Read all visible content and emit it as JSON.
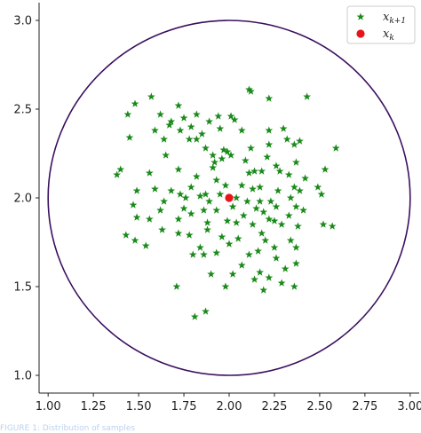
{
  "chart_data": {
    "type": "scatter",
    "title": "",
    "xlabel": "",
    "ylabel": "",
    "xlim": [
      0.95,
      3.05
    ],
    "ylim": [
      0.9,
      3.1
    ],
    "xticks": [
      "1.00",
      "1.25",
      "1.50",
      "1.75",
      "2.00",
      "2.25",
      "2.50",
      "2.75",
      "3.00"
    ],
    "yticks": [
      "1.0",
      "1.5",
      "2.0",
      "2.5",
      "3.0"
    ],
    "grid": false,
    "legend_position": "top-right",
    "circle": {
      "center": [
        2.0,
        2.0
      ],
      "radius": 1.0,
      "color": "#3b0f5e"
    },
    "series": [
      {
        "name": "x_{k+1}",
        "label_main": "x",
        "label_sub": "k+1",
        "marker": "star",
        "color": "#1a8a1a",
        "points": [
          [
            1.48,
            2.53
          ],
          [
            1.57,
            2.57
          ],
          [
            1.44,
            2.47
          ],
          [
            1.67,
            2.41
          ],
          [
            1.62,
            2.47
          ],
          [
            1.75,
            2.45
          ],
          [
            1.82,
            2.47
          ],
          [
            1.89,
            2.43
          ],
          [
            1.94,
            2.46
          ],
          [
            2.01,
            2.46
          ],
          [
            2.03,
            2.44
          ],
          [
            2.12,
            2.6
          ],
          [
            2.22,
            2.56
          ],
          [
            2.43,
            2.57
          ],
          [
            2.11,
            2.61
          ],
          [
            1.72,
            2.52
          ],
          [
            1.68,
            2.43
          ],
          [
            1.73,
            2.38
          ],
          [
            1.79,
            2.4
          ],
          [
            1.85,
            2.36
          ],
          [
            1.45,
            2.34
          ],
          [
            1.59,
            2.38
          ],
          [
            1.64,
            2.33
          ],
          [
            1.78,
            2.33
          ],
          [
            1.82,
            2.33
          ],
          [
            1.95,
            2.39
          ],
          [
            2.07,
            2.38
          ],
          [
            2.22,
            2.38
          ],
          [
            2.3,
            2.39
          ],
          [
            2.32,
            2.33
          ],
          [
            1.87,
            2.28
          ],
          [
            1.91,
            2.24
          ],
          [
            1.97,
            2.27
          ],
          [
            1.99,
            2.26
          ],
          [
            2.12,
            2.28
          ],
          [
            2.22,
            2.3
          ],
          [
            2.36,
            2.3
          ],
          [
            2.39,
            2.32
          ],
          [
            2.59,
            2.28
          ],
          [
            1.65,
            2.24
          ],
          [
            1.92,
            2.2
          ],
          [
            2.01,
            2.24
          ],
          [
            2.09,
            2.21
          ],
          [
            2.11,
            2.14
          ],
          [
            2.21,
            2.23
          ],
          [
            2.26,
            2.18
          ],
          [
            2.37,
            2.2
          ],
          [
            1.4,
            2.16
          ],
          [
            1.38,
            2.13
          ],
          [
            1.56,
            2.14
          ],
          [
            1.72,
            2.16
          ],
          [
            1.82,
            2.12
          ],
          [
            1.91,
            2.17
          ],
          [
            1.96,
            2.22
          ],
          [
            2.14,
            2.15
          ],
          [
            2.18,
            2.15
          ],
          [
            2.28,
            2.15
          ],
          [
            2.33,
            2.13
          ],
          [
            2.42,
            2.11
          ],
          [
            2.53,
            2.16
          ],
          [
            1.68,
            2.04
          ],
          [
            1.79,
            2.06
          ],
          [
            1.87,
            2.02
          ],
          [
            1.93,
            2.1
          ],
          [
            1.98,
            2.07
          ],
          [
            2.07,
            2.07
          ],
          [
            2.13,
            2.05
          ],
          [
            2.17,
            2.06
          ],
          [
            2.27,
            2.04
          ],
          [
            2.36,
            2.06
          ],
          [
            2.39,
            2.04
          ],
          [
            2.49,
            2.06
          ],
          [
            1.49,
            2.04
          ],
          [
            1.59,
            2.05
          ],
          [
            1.64,
            1.98
          ],
          [
            1.73,
            2.02
          ],
          [
            1.76,
            2.0
          ],
          [
            1.84,
            2.01
          ],
          [
            1.89,
            1.98
          ],
          [
            1.95,
            2.02
          ],
          [
            2.04,
            2.0
          ],
          [
            2.1,
            1.98
          ],
          [
            2.17,
            1.98
          ],
          [
            2.23,
            1.98
          ],
          [
            2.34,
            2.0
          ],
          [
            2.37,
            1.95
          ],
          [
            2.51,
            2.02
          ],
          [
            1.47,
            1.96
          ],
          [
            1.62,
            1.93
          ],
          [
            1.75,
            1.94
          ],
          [
            1.86,
            1.93
          ],
          [
            1.93,
            1.93
          ],
          [
            2.02,
            1.95
          ],
          [
            2.08,
            1.9
          ],
          [
            2.15,
            1.94
          ],
          [
            2.19,
            1.92
          ],
          [
            2.26,
            1.95
          ],
          [
            2.33,
            1.9
          ],
          [
            2.41,
            1.93
          ],
          [
            2.52,
            1.85
          ],
          [
            1.49,
            1.89
          ],
          [
            1.56,
            1.88
          ],
          [
            1.72,
            1.88
          ],
          [
            1.79,
            1.91
          ],
          [
            1.88,
            1.86
          ],
          [
            1.99,
            1.87
          ],
          [
            2.04,
            1.86
          ],
          [
            2.13,
            1.85
          ],
          [
            2.22,
            1.88
          ],
          [
            2.25,
            1.87
          ],
          [
            2.29,
            1.85
          ],
          [
            2.38,
            1.84
          ],
          [
            2.57,
            1.84
          ],
          [
            1.43,
            1.79
          ],
          [
            1.48,
            1.76
          ],
          [
            1.54,
            1.73
          ],
          [
            1.63,
            1.82
          ],
          [
            1.72,
            1.8
          ],
          [
            1.78,
            1.79
          ],
          [
            1.88,
            1.82
          ],
          [
            1.96,
            1.78
          ],
          [
            2.05,
            1.77
          ],
          [
            2.18,
            1.8
          ],
          [
            2.2,
            1.76
          ],
          [
            2.25,
            1.72
          ],
          [
            2.34,
            1.76
          ],
          [
            2.37,
            1.72
          ],
          [
            1.84,
            1.72
          ],
          [
            1.86,
            1.68
          ],
          [
            1.93,
            1.69
          ],
          [
            2.0,
            1.74
          ],
          [
            2.11,
            1.68
          ],
          [
            2.16,
            1.7
          ],
          [
            2.26,
            1.66
          ],
          [
            2.31,
            1.6
          ],
          [
            2.37,
            1.63
          ],
          [
            1.8,
            1.68
          ],
          [
            1.9,
            1.57
          ],
          [
            2.02,
            1.57
          ],
          [
            2.07,
            1.62
          ],
          [
            2.14,
            1.54
          ],
          [
            2.17,
            1.58
          ],
          [
            2.22,
            1.55
          ],
          [
            2.29,
            1.52
          ],
          [
            2.19,
            1.48
          ],
          [
            2.36,
            1.5
          ],
          [
            1.98,
            1.5
          ],
          [
            1.71,
            1.5
          ],
          [
            1.87,
            1.36
          ],
          [
            1.81,
            1.33
          ]
        ]
      },
      {
        "name": "x_k",
        "label_main": "x",
        "label_sub": "k",
        "marker": "circle",
        "color": "#e8141a",
        "points": [
          [
            2.0,
            2.0
          ]
        ]
      }
    ]
  },
  "caption": "FIGURE 1: Distribution of samples"
}
